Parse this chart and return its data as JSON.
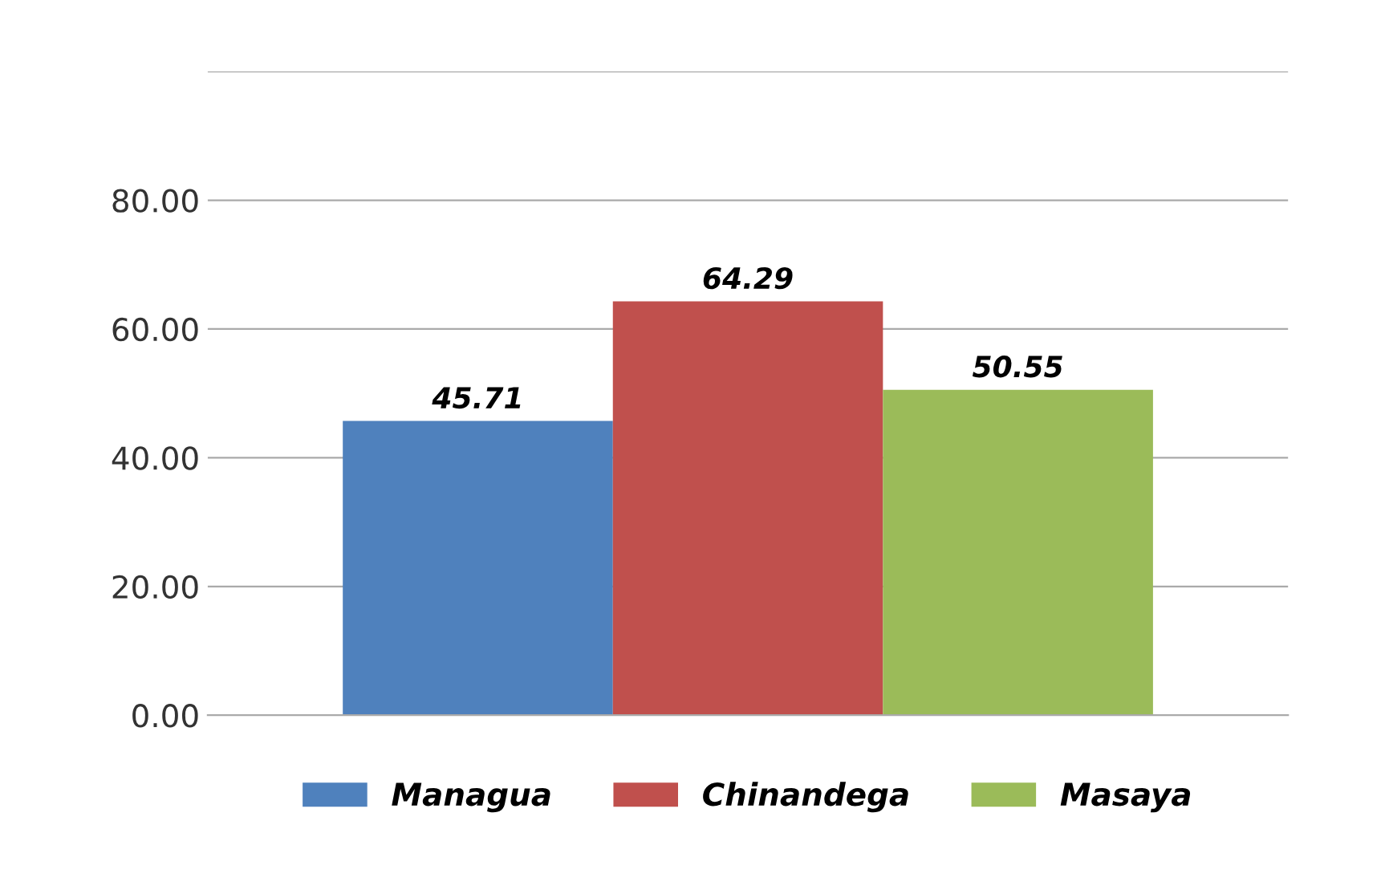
{
  "chart_data": {
    "type": "bar",
    "categories": [
      null
    ],
    "series": [
      {
        "name": "Managua",
        "color": "#4f81bd",
        "values": [
          45.71
        ]
      },
      {
        "name": "Chinandega",
        "color": "#c0504d",
        "values": [
          64.29
        ]
      },
      {
        "name": "Masaya",
        "color": "#9bbb59",
        "values": [
          50.55
        ]
      }
    ],
    "ylim": [
      0,
      100
    ],
    "yticks": [
      {
        "value": 0,
        "label": "0.00"
      },
      {
        "value": 20,
        "label": "20.00"
      },
      {
        "value": 40,
        "label": "40.00"
      },
      {
        "value": 60,
        "label": "60.00"
      },
      {
        "value": 80,
        "label": "80.00"
      },
      {
        "value": 100,
        "label": null
      }
    ],
    "grid": "y",
    "legend": "bottom",
    "data_labels": true
  }
}
